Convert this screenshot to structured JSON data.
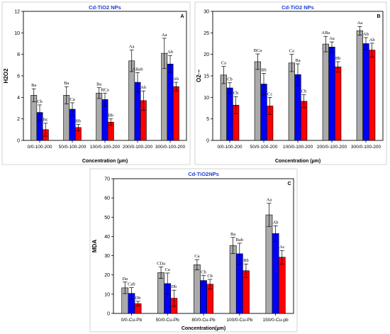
{
  "colors": {
    "series1": "#aaaaaa",
    "series2": "#0000ff",
    "series3": "#ff0000",
    "title": "#1f3fcf"
  },
  "chart_data": [
    {
      "type": "bar",
      "panel": "A",
      "title": "Cd-TiO2 NPs",
      "ylabel": "H2O2",
      "xlabel": "Concentration (µm)",
      "ylim": [
        0,
        12
      ],
      "yticks": [
        0,
        2,
        4,
        6,
        8,
        10,
        12
      ],
      "categories": [
        "0/0-100-200",
        "50/0-100-200",
        "100/0-100-200",
        "200/0-100-200",
        "300/0-100-200"
      ],
      "series": [
        {
          "values": [
            4.2,
            4.2,
            4.4,
            7.4,
            8.1
          ],
          "errors": [
            0.6,
            0.8,
            0.5,
            1.0,
            1.4
          ],
          "labels": [
            "Ba",
            "Ba",
            "Ba",
            "Aa",
            "Aa"
          ]
        },
        {
          "values": [
            2.6,
            2.9,
            3.8,
            5.4,
            7.1
          ],
          "errors": [
            0.7,
            0.6,
            0.6,
            0.9,
            0.8
          ],
          "labels": [
            "Cb",
            "Ca",
            "BCa",
            "ABab",
            "Ab"
          ]
        },
        {
          "values": [
            1.0,
            1.2,
            1.7,
            3.7,
            5.0
          ],
          "errors": [
            0.6,
            0.3,
            0.3,
            0.9,
            0.4
          ],
          "labels": [
            "Bc",
            "Bb",
            "Bb",
            "Ab",
            "Ab"
          ]
        }
      ]
    },
    {
      "type": "bar",
      "panel": "B",
      "title": "Cd-TiO2 NPs",
      "ylabel": "O2·−",
      "xlabel": "Concentration (µm)",
      "ylim": [
        0,
        30
      ],
      "yticks": [
        0,
        5,
        10,
        15,
        20,
        25,
        30
      ],
      "categories": [
        "0/0-100-200",
        "50/0-100-200",
        "100/0-100-200",
        "200/0-100-200",
        "300/0-100-200"
      ],
      "series": [
        {
          "values": [
            15.2,
            18.3,
            18.0,
            22.4,
            25.5
          ],
          "errors": [
            2.0,
            1.8,
            2.0,
            1.8,
            1.0
          ],
          "labels": [
            "Ca",
            "BCa",
            "Ca",
            "ABa",
            "Aa"
          ]
        },
        {
          "values": [
            12.2,
            13.1,
            15.3,
            21.7,
            22.5
          ],
          "errors": [
            1.2,
            2.5,
            2.5,
            1.2,
            1.4
          ],
          "labels": [
            "Cb",
            "Bb",
            "Ba",
            "Aa",
            "Ab"
          ]
        },
        {
          "values": [
            8.2,
            8.0,
            9.1,
            17.1,
            21.0
          ],
          "errors": [
            2.0,
            2.0,
            1.5,
            1.2,
            1.6
          ],
          "labels": [
            "Cb",
            "Cc",
            "Cb",
            "Bb",
            "Ab"
          ]
        }
      ]
    },
    {
      "type": "bar",
      "panel": "C",
      "title": "Cd-TiO2NPs",
      "ylabel": "MDA",
      "xlabel": "Concentration(µm)",
      "ylim": [
        0,
        70
      ],
      "yticks": [
        0,
        10,
        20,
        30,
        40,
        50,
        60,
        70
      ],
      "categories": [
        "0/0-Cu-Pb",
        "50/0-Cu-Pb",
        "80/0-Cu-Pb",
        "100/0-Cu-Pb",
        "150/0-Cu-pb"
      ],
      "series": [
        {
          "values": [
            13.3,
            21.2,
            25.3,
            35.3,
            51.2
          ],
          "errors": [
            3.0,
            3.0,
            2.7,
            4.2,
            6.0
          ],
          "labels": [
            "Da",
            "CDa",
            "Ca",
            "Ba",
            "Aa"
          ]
        },
        {
          "values": [
            10.4,
            15.5,
            17.1,
            31.0,
            41.5
          ],
          "errors": [
            3.0,
            5.5,
            2.7,
            5.5,
            4.0
          ],
          "labels": [
            "Cab",
            "Ca",
            "Cb",
            "Bab",
            "Ab"
          ]
        },
        {
          "values": [
            5.1,
            7.9,
            15.2,
            22.2,
            29.2
          ],
          "errors": [
            1.2,
            4.2,
            2.5,
            3.5,
            3.5
          ],
          "labels": [
            "Db",
            "Db",
            "Cb",
            "Bb",
            "Ac"
          ]
        }
      ]
    }
  ]
}
